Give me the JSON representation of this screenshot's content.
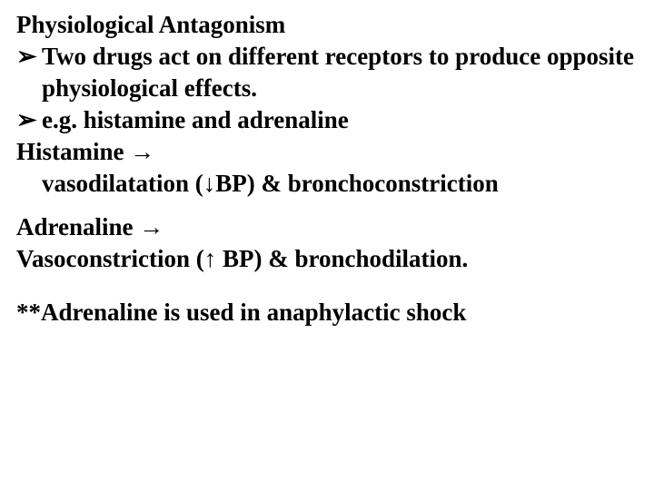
{
  "title": "Physiological Antagonism",
  "bullet_glyph": "➢",
  "right_arrow": "→",
  "down_arrow": "↓",
  "up_arrow": "↑",
  "b1": "Two drugs act on different receptors to produce opposite physiological effects.",
  "b2": " e.g. histamine and adrenaline",
  "hist_label": "Histamine ",
  "hist_effect_a": "vasodilatation (",
  "hist_effect_b": "BP) & bronchoconstriction",
  "adren_label": "Adrenaline ",
  "adren_effect_a": "Vasoconstriction (",
  "adren_effect_b": " BP) & bronchodilation.",
  "note": "**Adrenaline is used in anaphylactic shock",
  "colors": {
    "text": "#000000",
    "background": "#ffffff"
  },
  "font": {
    "family": "Times New Roman",
    "weight": "bold",
    "size_pt": 20
  }
}
